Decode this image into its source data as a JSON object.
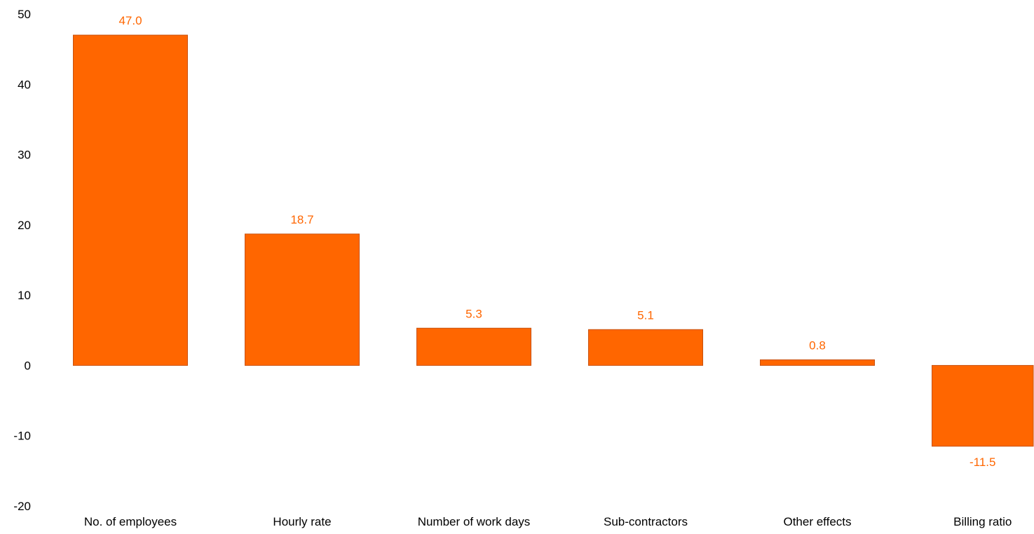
{
  "chart_data": {
    "type": "bar",
    "title": "",
    "xlabel": "",
    "ylabel": "",
    "categories": [
      "No. of employees",
      "Hourly rate",
      "Number of work days",
      "Sub-contractors",
      "Other effects",
      "Billing ratio"
    ],
    "values": [
      47.0,
      18.7,
      5.3,
      5.1,
      0.8,
      -11.5
    ],
    "data_labels": [
      "47.0",
      "18.7",
      "5.3",
      "5.1",
      "0.8",
      "-11.5"
    ],
    "ylim": [
      -20,
      50
    ],
    "yticks": [
      50,
      40,
      30,
      20,
      10,
      0,
      -10,
      -20
    ],
    "ytick_labels": [
      "50",
      "40",
      "30",
      "20",
      "10",
      "0",
      "-10",
      "-20"
    ],
    "grid": false,
    "legend": "none",
    "colors": {
      "bar_fill": "#FF6600",
      "bar_stroke": "#C8520F",
      "data_label": "#FF6600",
      "axis_text": "#000000"
    }
  }
}
